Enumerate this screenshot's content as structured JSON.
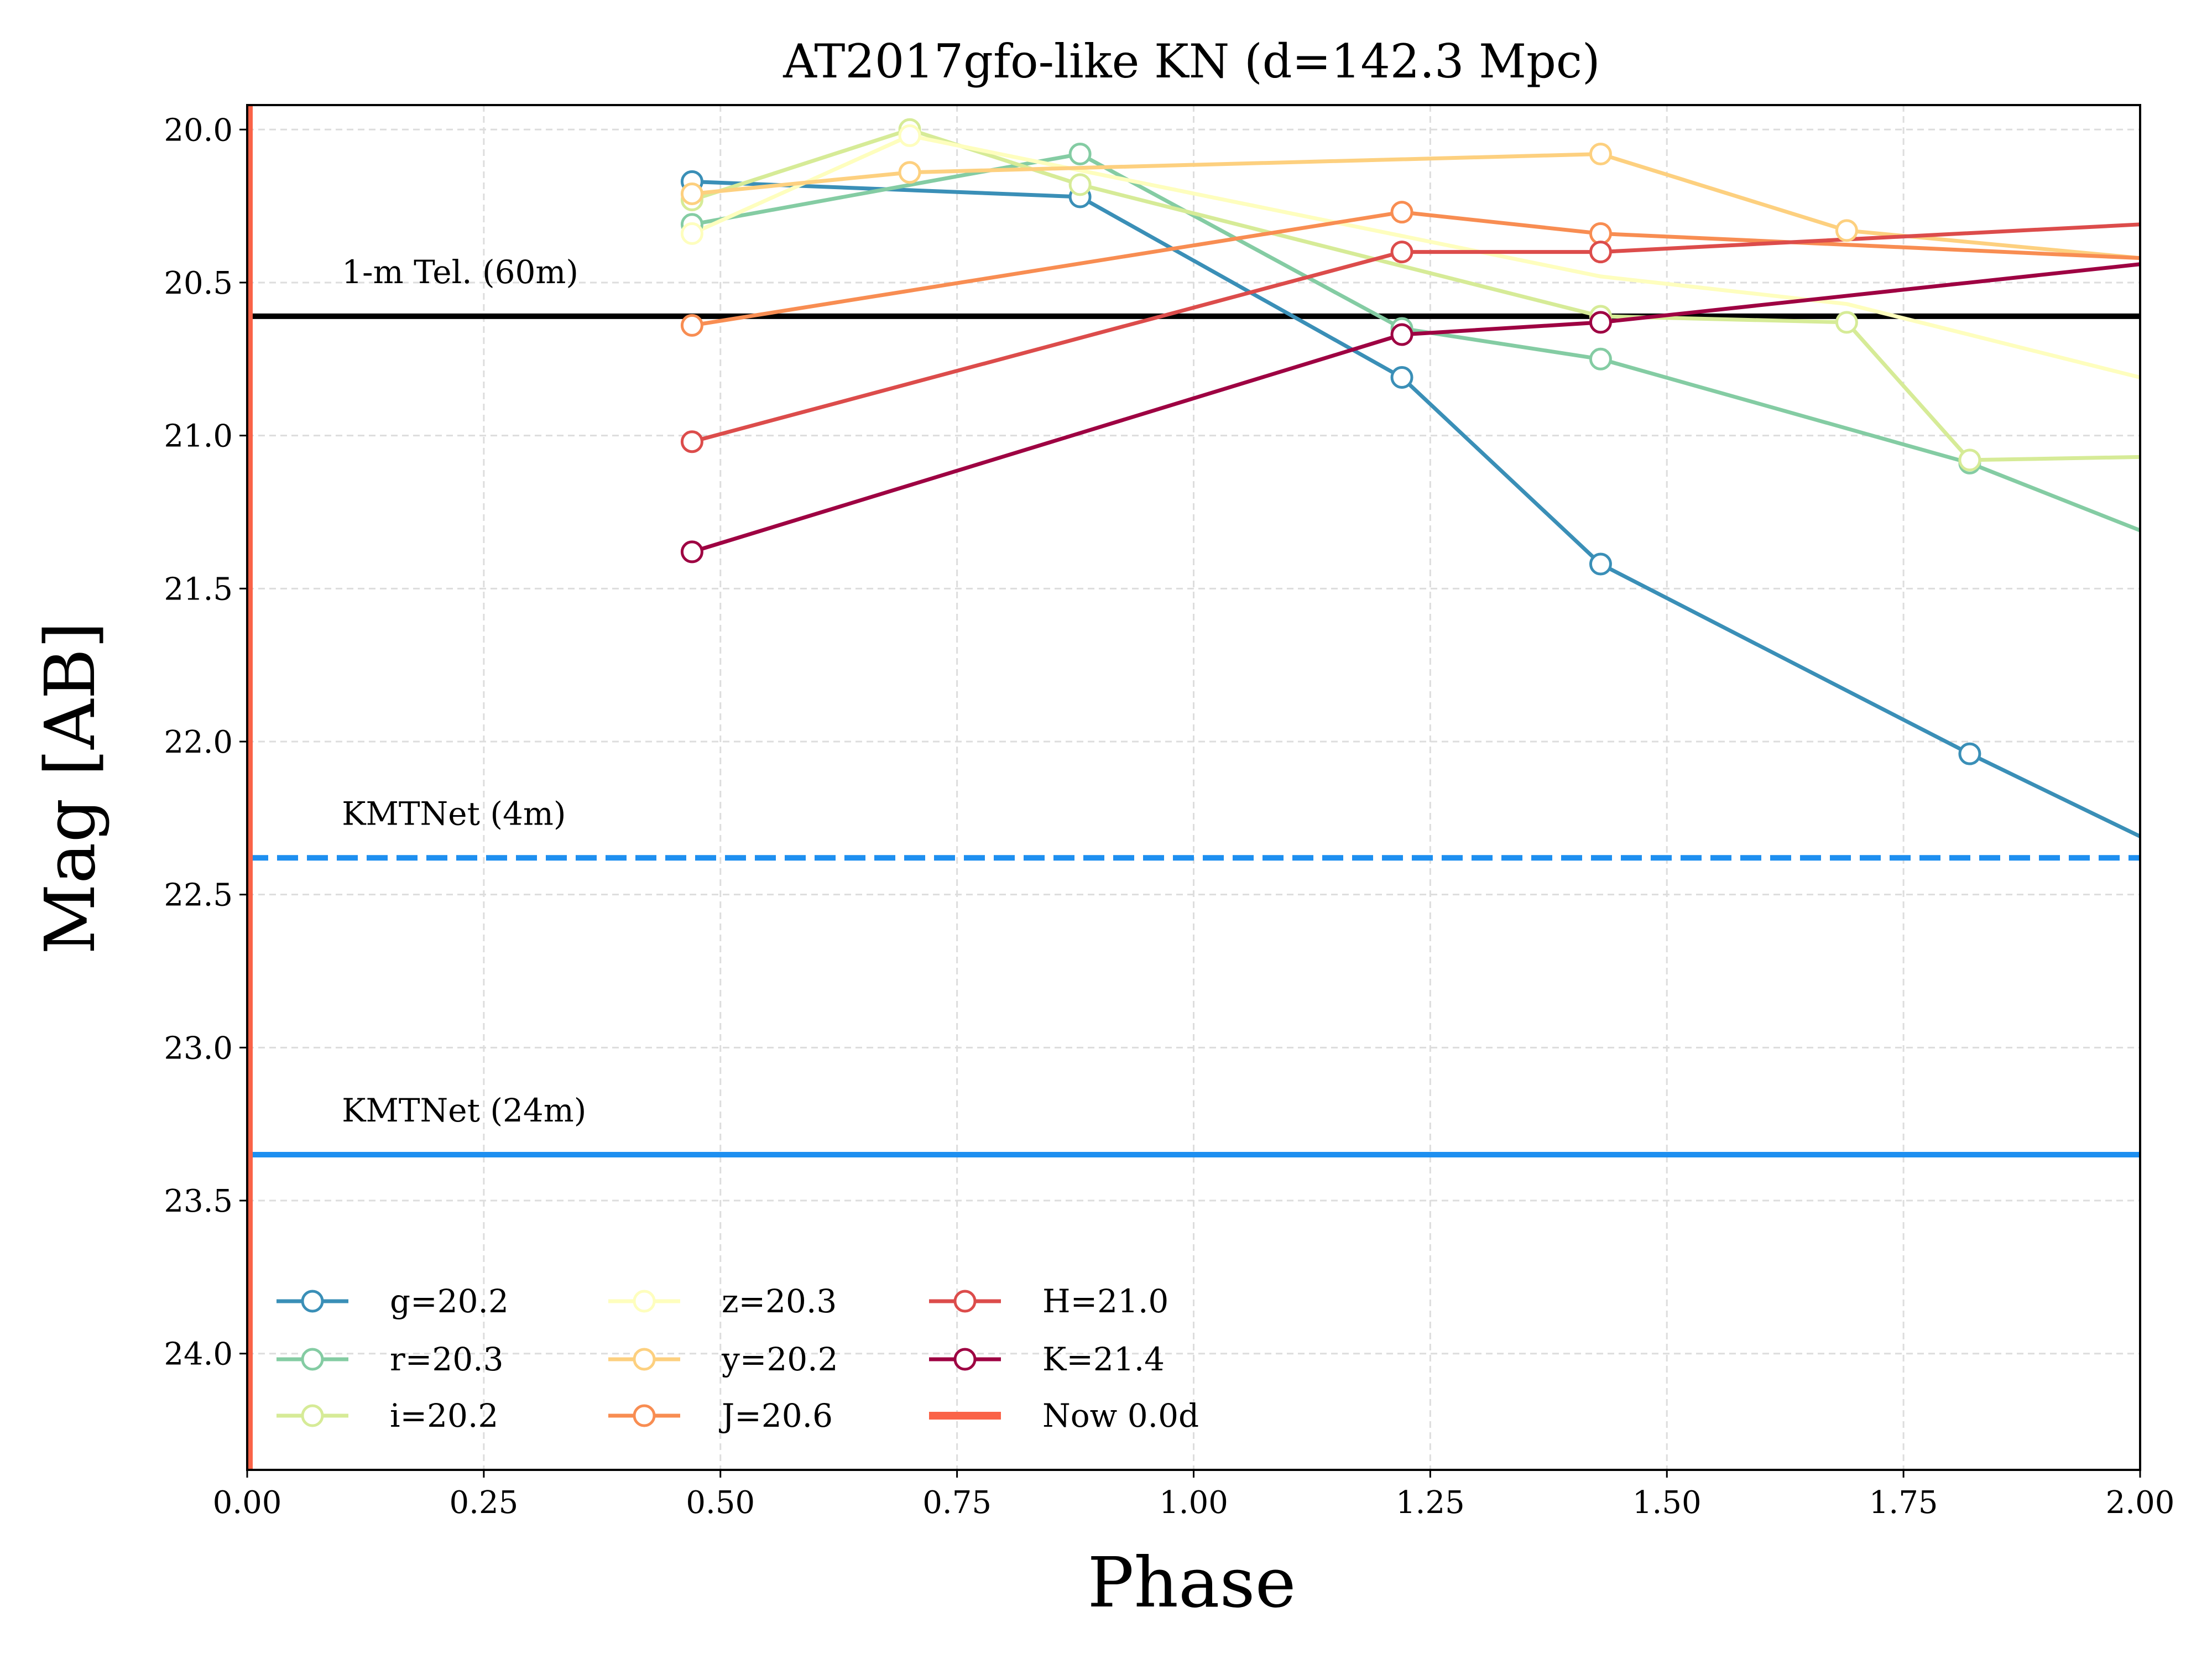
{
  "chart_data": {
    "type": "line",
    "title": "AT2017gfo-like KN (d=142.3 Mpc)",
    "xlabel": "Phase",
    "ylabel": "Mag [AB]",
    "xlim": [
      0.0,
      2.0
    ],
    "ylim": [
      24.38,
      19.92
    ],
    "y_inverted": true,
    "grid": true,
    "legend_position": "lower-left",
    "legend_columns": 3,
    "x_ticks": [
      "0.00",
      "0.25",
      "0.50",
      "0.75",
      "1.00",
      "1.25",
      "1.50",
      "1.75",
      "2.00"
    ],
    "y_ticks": [
      "20.0",
      "20.5",
      "21.0",
      "21.5",
      "22.0",
      "22.5",
      "23.0",
      "23.5",
      "24.0"
    ],
    "series": [
      {
        "name": "g=20.2",
        "color": "#3a8fb7",
        "x": [
          0.47,
          0.88,
          1.22,
          1.43,
          1.82,
          2.0
        ],
        "y": [
          20.17,
          20.22,
          20.81,
          21.42,
          22.04,
          22.31
        ],
        "markers": [
          true,
          true,
          true,
          true,
          true,
          false
        ]
      },
      {
        "name": "r=20.3",
        "color": "#84cca3",
        "x": [
          0.47,
          0.88,
          1.22,
          1.43,
          1.82,
          2.0
        ],
        "y": [
          20.31,
          20.08,
          20.65,
          20.75,
          21.09,
          21.31
        ],
        "markers": [
          true,
          true,
          true,
          true,
          true,
          false
        ]
      },
      {
        "name": "i=20.2",
        "color": "#d6eb97",
        "x": [
          0.47,
          0.7,
          0.88,
          1.43,
          1.69,
          1.82,
          2.0
        ],
        "y": [
          20.23,
          20.0,
          20.18,
          20.61,
          20.63,
          21.08,
          21.07
        ],
        "markers": [
          true,
          true,
          true,
          true,
          true,
          true,
          false
        ]
      },
      {
        "name": "z=20.3",
        "color": "#fefebe",
        "x": [
          0.47,
          0.7,
          1.43,
          1.69,
          2.0
        ],
        "y": [
          20.34,
          20.02,
          20.48,
          20.57,
          20.81
        ],
        "markers": [
          true,
          true,
          false,
          false,
          false
        ]
      },
      {
        "name": "y=20.2",
        "color": "#fdd07f",
        "x": [
          0.47,
          0.7,
          1.43,
          1.69,
          2.0
        ],
        "y": [
          20.21,
          20.14,
          20.08,
          20.33,
          20.42
        ],
        "markers": [
          true,
          true,
          true,
          true,
          false
        ]
      },
      {
        "name": "J=20.6",
        "color": "#f88d52",
        "x": [
          0.47,
          1.22,
          1.43,
          2.0
        ],
        "y": [
          20.64,
          20.27,
          20.34,
          20.42
        ],
        "markers": [
          true,
          true,
          true,
          false
        ]
      },
      {
        "name": "H=21.0",
        "color": "#dc4c4b",
        "x": [
          0.47,
          1.22,
          1.43,
          2.0
        ],
        "y": [
          21.02,
          20.4,
          20.4,
          20.31
        ],
        "markers": [
          true,
          true,
          true,
          false
        ]
      },
      {
        "name": "K=21.4",
        "color": "#9e0142",
        "x": [
          0.47,
          1.22,
          1.43,
          2.0
        ],
        "y": [
          21.38,
          20.67,
          20.63,
          20.44
        ],
        "markers": [
          true,
          true,
          true,
          false
        ]
      }
    ],
    "now_line": {
      "name": "Now 0.0d",
      "x": 0.0,
      "color": "#fa6348"
    },
    "limit_lines": [
      {
        "label": "1-m Tel. (60m)",
        "y": 20.61,
        "color": "#000000",
        "style": "solid"
      },
      {
        "label": "KMTNet (4m)",
        "y": 22.38,
        "color": "#1e8ff0",
        "style": "dashed"
      },
      {
        "label": "KMTNet (24m)",
        "y": 23.35,
        "color": "#1e8ff0",
        "style": "solid"
      }
    ]
  }
}
